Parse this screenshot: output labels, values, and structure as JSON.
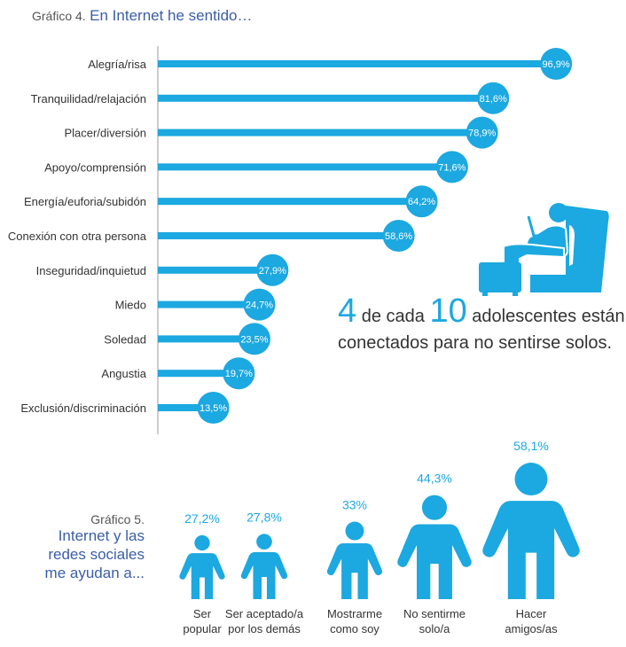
{
  "chart4": {
    "label": "Gráfico 4.",
    "title": "En Internet he sentido…"
  },
  "callout": {
    "number_a": "4",
    "text_a": "de cada",
    "number_b": "10",
    "text_b": "adolescentes están",
    "line2": "conectados para no sentirse solos."
  },
  "chart5": {
    "label": "Gráfico 5.",
    "title_lines": [
      "Internet y las",
      "redes sociales",
      "me ayudan a..."
    ]
  },
  "colors": {
    "accent": "#1ca8e0",
    "title_blue": "#3b5ea8",
    "text": "#333333",
    "axis": "#999999"
  },
  "chart_data": [
    {
      "type": "bar",
      "orientation": "horizontal",
      "categories": [
        "Alegría/risa",
        "Tranquilidad/relajación",
        "Placer/diversión",
        "Apoyo/comprensión",
        "Energía/euforia/subidón",
        "Conexión con otra persona",
        "Inseguridad/inquietud",
        "Miedo",
        "Soledad",
        "Angustia",
        "Exclusión/discriminación"
      ],
      "values": [
        96.9,
        81.6,
        78.9,
        71.6,
        64.2,
        58.6,
        27.9,
        24.7,
        23.5,
        19.7,
        13.5
      ],
      "value_labels": [
        "96,9%",
        "81,6%",
        "78,9%",
        "71,6%",
        "64,2%",
        "58,6%",
        "27,9%",
        "24,7%",
        "23,5%",
        "19,7%",
        "13,5%"
      ],
      "xlim": [
        0,
        100
      ]
    },
    {
      "type": "bar",
      "style": "pictogram",
      "categories": [
        [
          "Ser",
          "popular"
        ],
        [
          "Ser aceptado/a",
          "por los demás"
        ],
        [
          "Mostrarme",
          "como soy"
        ],
        [
          "No sentirme",
          "solo/a"
        ],
        [
          "Hacer",
          "amigos/as"
        ]
      ],
      "values": [
        27.2,
        27.8,
        33,
        44.3,
        58.1
      ],
      "value_labels": [
        "27,2%",
        "27,8%",
        "33%",
        "44,3%",
        "58,1%"
      ]
    }
  ]
}
